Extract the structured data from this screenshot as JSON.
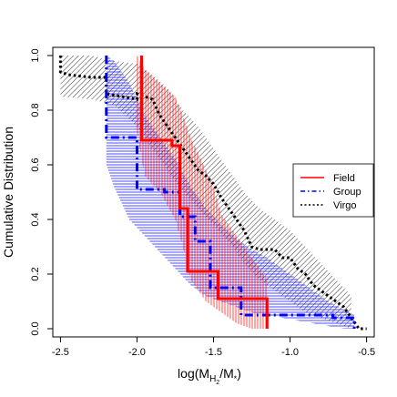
{
  "chart_data": {
    "type": "line",
    "step": true,
    "xlabel_parts": {
      "pre": "log(M",
      "sub1": "H",
      "sub2": "2",
      "mid": "/M",
      "sub3": "*",
      "post": ")"
    },
    "ylabel": "Cumulative Distribution",
    "xlim": [
      -2.55,
      -0.45
    ],
    "ylim": [
      -0.03,
      1.03
    ],
    "xticks": [
      -2.5,
      -2.0,
      -1.5,
      -1.0,
      -0.5
    ],
    "xtick_labels": [
      "-2.5",
      "-2.0",
      "-1.5",
      "-1.0",
      "-0.5"
    ],
    "yticks": [
      0.0,
      0.2,
      0.4,
      0.6,
      0.8,
      1.0
    ],
    "ytick_labels": [
      "0.0",
      "0.2",
      "0.4",
      "0.6",
      "0.8",
      "1.0"
    ],
    "grid": false,
    "legend": {
      "position": "right",
      "entries": [
        {
          "label": "Field",
          "color": "#ff0000",
          "style": "solid"
        },
        {
          "label": "Group",
          "color": "#0000ff",
          "style": "dashdot"
        },
        {
          "label": "Virgo",
          "color": "#000000",
          "style": "dotted"
        }
      ]
    },
    "series": [
      {
        "name": "Field",
        "color": "#ff0000",
        "style": "solid",
        "band_hatch": "vertical",
        "band_x": [
          -2.0,
          -1.95,
          -1.85,
          -1.75,
          -1.7,
          -1.65,
          -1.55,
          -1.5,
          -1.45,
          -1.35,
          -1.25,
          -1.15
        ],
        "band_low": [
          0.72,
          0.56,
          0.5,
          0.4,
          0.3,
          0.18,
          0.1,
          0.08,
          0.06,
          0.02,
          0.0,
          0.0
        ],
        "band_high": [
          1.0,
          0.95,
          0.9,
          0.85,
          0.78,
          0.7,
          0.58,
          0.52,
          0.42,
          0.34,
          0.26,
          0.18
        ],
        "x": [
          -1.97,
          -1.97,
          -1.77,
          -1.77,
          -1.72,
          -1.72,
          -1.67,
          -1.67,
          -1.62,
          -1.62,
          -1.47,
          -1.47,
          -1.37,
          -1.37,
          -1.15,
          -1.15
        ],
        "y": [
          1.0,
          0.69,
          0.69,
          0.67,
          0.67,
          0.44,
          0.44,
          0.21,
          0.21,
          0.21,
          0.21,
          0.11,
          0.11,
          0.11,
          0.11,
          0.0
        ]
      },
      {
        "name": "Group",
        "color": "#0000ff",
        "style": "dashdot",
        "band_hatch": "horizontal",
        "band_x": [
          -2.2,
          -2.15,
          -2.05,
          -1.95,
          -1.85,
          -1.75,
          -1.65,
          -1.55,
          -1.45,
          -1.35,
          -1.25,
          -1.15,
          -1.05,
          -0.95,
          -0.85,
          -0.75,
          -0.65,
          -0.58
        ],
        "band_low": [
          0.6,
          0.52,
          0.4,
          0.34,
          0.28,
          0.22,
          0.16,
          0.12,
          0.1,
          0.08,
          0.06,
          0.05,
          0.04,
          0.03,
          0.02,
          0.01,
          0.0,
          0.0
        ],
        "band_high": [
          1.0,
          0.98,
          0.9,
          0.78,
          0.7,
          0.62,
          0.52,
          0.44,
          0.38,
          0.33,
          0.29,
          0.26,
          0.22,
          0.18,
          0.14,
          0.1,
          0.07,
          0.05
        ],
        "x": [
          -2.2,
          -2.2,
          -2.2,
          -2.2,
          -2.0,
          -2.0,
          -1.82,
          -1.82,
          -1.72,
          -1.72,
          -1.62,
          -1.62,
          -1.52,
          -1.52,
          -1.32,
          -1.32,
          -1.12,
          -1.12,
          -0.72,
          -0.72,
          -0.58,
          -0.58
        ],
        "y": [
          1.0,
          0.86,
          0.86,
          0.7,
          0.7,
          0.51,
          0.51,
          0.5,
          0.5,
          0.41,
          0.41,
          0.32,
          0.32,
          0.15,
          0.15,
          0.05,
          0.05,
          0.05,
          0.05,
          0.04,
          0.04,
          0.0
        ]
      },
      {
        "name": "Virgo",
        "color": "#000000",
        "style": "dotted",
        "band_hatch": "diagonal",
        "band_x": [
          -2.5,
          -2.3,
          -2.15,
          -2.0,
          -1.9,
          -1.8,
          -1.7,
          -1.6,
          -1.5,
          -1.4,
          -1.3,
          -1.2,
          -1.1,
          -1.0,
          -0.9,
          -0.8,
          -0.7,
          -0.6
        ],
        "band_low": [
          0.85,
          0.84,
          0.82,
          0.74,
          0.66,
          0.58,
          0.5,
          0.44,
          0.38,
          0.32,
          0.24,
          0.18,
          0.14,
          0.1,
          0.06,
          0.04,
          0.02,
          0.0
        ],
        "band_high": [
          1.0,
          1.0,
          0.98,
          0.97,
          0.93,
          0.88,
          0.8,
          0.74,
          0.66,
          0.58,
          0.5,
          0.44,
          0.4,
          0.36,
          0.3,
          0.24,
          0.18,
          0.12
        ],
        "x": [
          -2.5,
          -2.5,
          -2.5,
          -2.45,
          -2.3,
          -2.2,
          -2.2,
          -2.1,
          -2.0,
          -2.0,
          -1.9,
          -1.85,
          -1.8,
          -1.75,
          -1.7,
          -1.65,
          -1.6,
          -1.55,
          -1.5,
          -1.45,
          -1.4,
          -1.35,
          -1.3,
          -1.25,
          -1.2,
          -1.1,
          -1.05,
          -1.0,
          -0.95,
          -0.9,
          -0.85,
          -0.8,
          -0.7,
          -0.65,
          -0.6,
          -0.55,
          -0.5
        ],
        "y": [
          1.0,
          0.98,
          0.94,
          0.93,
          0.92,
          0.92,
          0.86,
          0.85,
          0.84,
          0.86,
          0.84,
          0.78,
          0.74,
          0.7,
          0.66,
          0.62,
          0.58,
          0.56,
          0.53,
          0.48,
          0.44,
          0.4,
          0.36,
          0.3,
          0.29,
          0.29,
          0.26,
          0.26,
          0.22,
          0.2,
          0.16,
          0.14,
          0.1,
          0.08,
          0.04,
          0.0,
          0.0
        ]
      }
    ]
  }
}
